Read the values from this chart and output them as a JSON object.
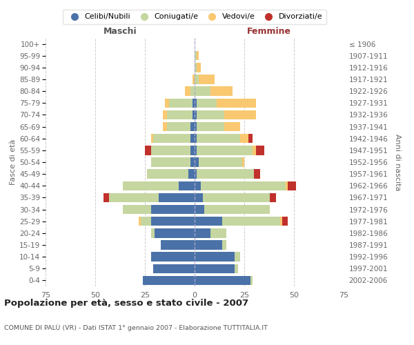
{
  "age_groups": [
    "0-4",
    "5-9",
    "10-14",
    "15-19",
    "20-24",
    "25-29",
    "30-34",
    "35-39",
    "40-44",
    "45-49",
    "50-54",
    "55-59",
    "60-64",
    "65-69",
    "70-74",
    "75-79",
    "80-84",
    "85-89",
    "90-94",
    "95-99",
    "100+"
  ],
  "birth_years": [
    "2002-2006",
    "1997-2001",
    "1992-1996",
    "1987-1991",
    "1982-1986",
    "1977-1981",
    "1972-1976",
    "1967-1971",
    "1962-1966",
    "1957-1961",
    "1952-1956",
    "1947-1951",
    "1942-1946",
    "1937-1941",
    "1932-1936",
    "1927-1931",
    "1922-1926",
    "1917-1921",
    "1912-1916",
    "1907-1911",
    "≤ 1906"
  ],
  "males": {
    "celibe": [
      26,
      21,
      22,
      17,
      20,
      22,
      22,
      18,
      8,
      3,
      2,
      2,
      2,
      2,
      1,
      1,
      0,
      0,
      0,
      0,
      0
    ],
    "coniugato": [
      0,
      0,
      0,
      0,
      2,
      5,
      14,
      25,
      28,
      21,
      20,
      20,
      19,
      12,
      13,
      12,
      2,
      0,
      0,
      0,
      0
    ],
    "vedovo": [
      0,
      0,
      0,
      0,
      0,
      1,
      0,
      0,
      0,
      0,
      0,
      0,
      1,
      2,
      2,
      2,
      3,
      1,
      0,
      0,
      0
    ],
    "divorziato": [
      0,
      0,
      0,
      0,
      0,
      0,
      0,
      3,
      0,
      0,
      0,
      3,
      0,
      0,
      0,
      0,
      0,
      0,
      0,
      0,
      0
    ]
  },
  "females": {
    "nubile": [
      28,
      20,
      20,
      14,
      8,
      14,
      5,
      4,
      3,
      1,
      2,
      1,
      1,
      1,
      1,
      1,
      0,
      0,
      0,
      0,
      0
    ],
    "coniugata": [
      1,
      2,
      3,
      2,
      8,
      29,
      33,
      34,
      43,
      29,
      22,
      28,
      22,
      14,
      14,
      10,
      8,
      2,
      1,
      1,
      0
    ],
    "vedova": [
      0,
      0,
      0,
      0,
      0,
      1,
      0,
      0,
      1,
      0,
      1,
      2,
      4,
      8,
      16,
      20,
      11,
      8,
      2,
      1,
      0
    ],
    "divorziata": [
      0,
      0,
      0,
      0,
      0,
      3,
      0,
      3,
      4,
      3,
      0,
      4,
      2,
      0,
      0,
      0,
      0,
      0,
      0,
      0,
      0
    ]
  },
  "colors": {
    "celibe": "#4a72a8",
    "coniugato": "#c5d6a0",
    "vedovo": "#f9c870",
    "divorziato": "#c0312b"
  },
  "title": "Popolazione per età, sesso e stato civile - 2007",
  "subtitle": "COMUNE DI PALÙ (VR) - Dati ISTAT 1° gennaio 2007 - Elaborazione TUTTITALIA.IT",
  "xlabel_left": "Maschi",
  "xlabel_right": "Femmine",
  "ylabel_left": "Fasce di età",
  "ylabel_right": "Anni di nascita",
  "xlim": 75,
  "legend_labels": [
    "Celibi/Nubili",
    "Coniugati/e",
    "Vedovi/e",
    "Divorziati/e"
  ],
  "background_color": "#ffffff",
  "grid_color": "#cccccc",
  "maschi_color": "#555555",
  "femmine_color": "#993333"
}
